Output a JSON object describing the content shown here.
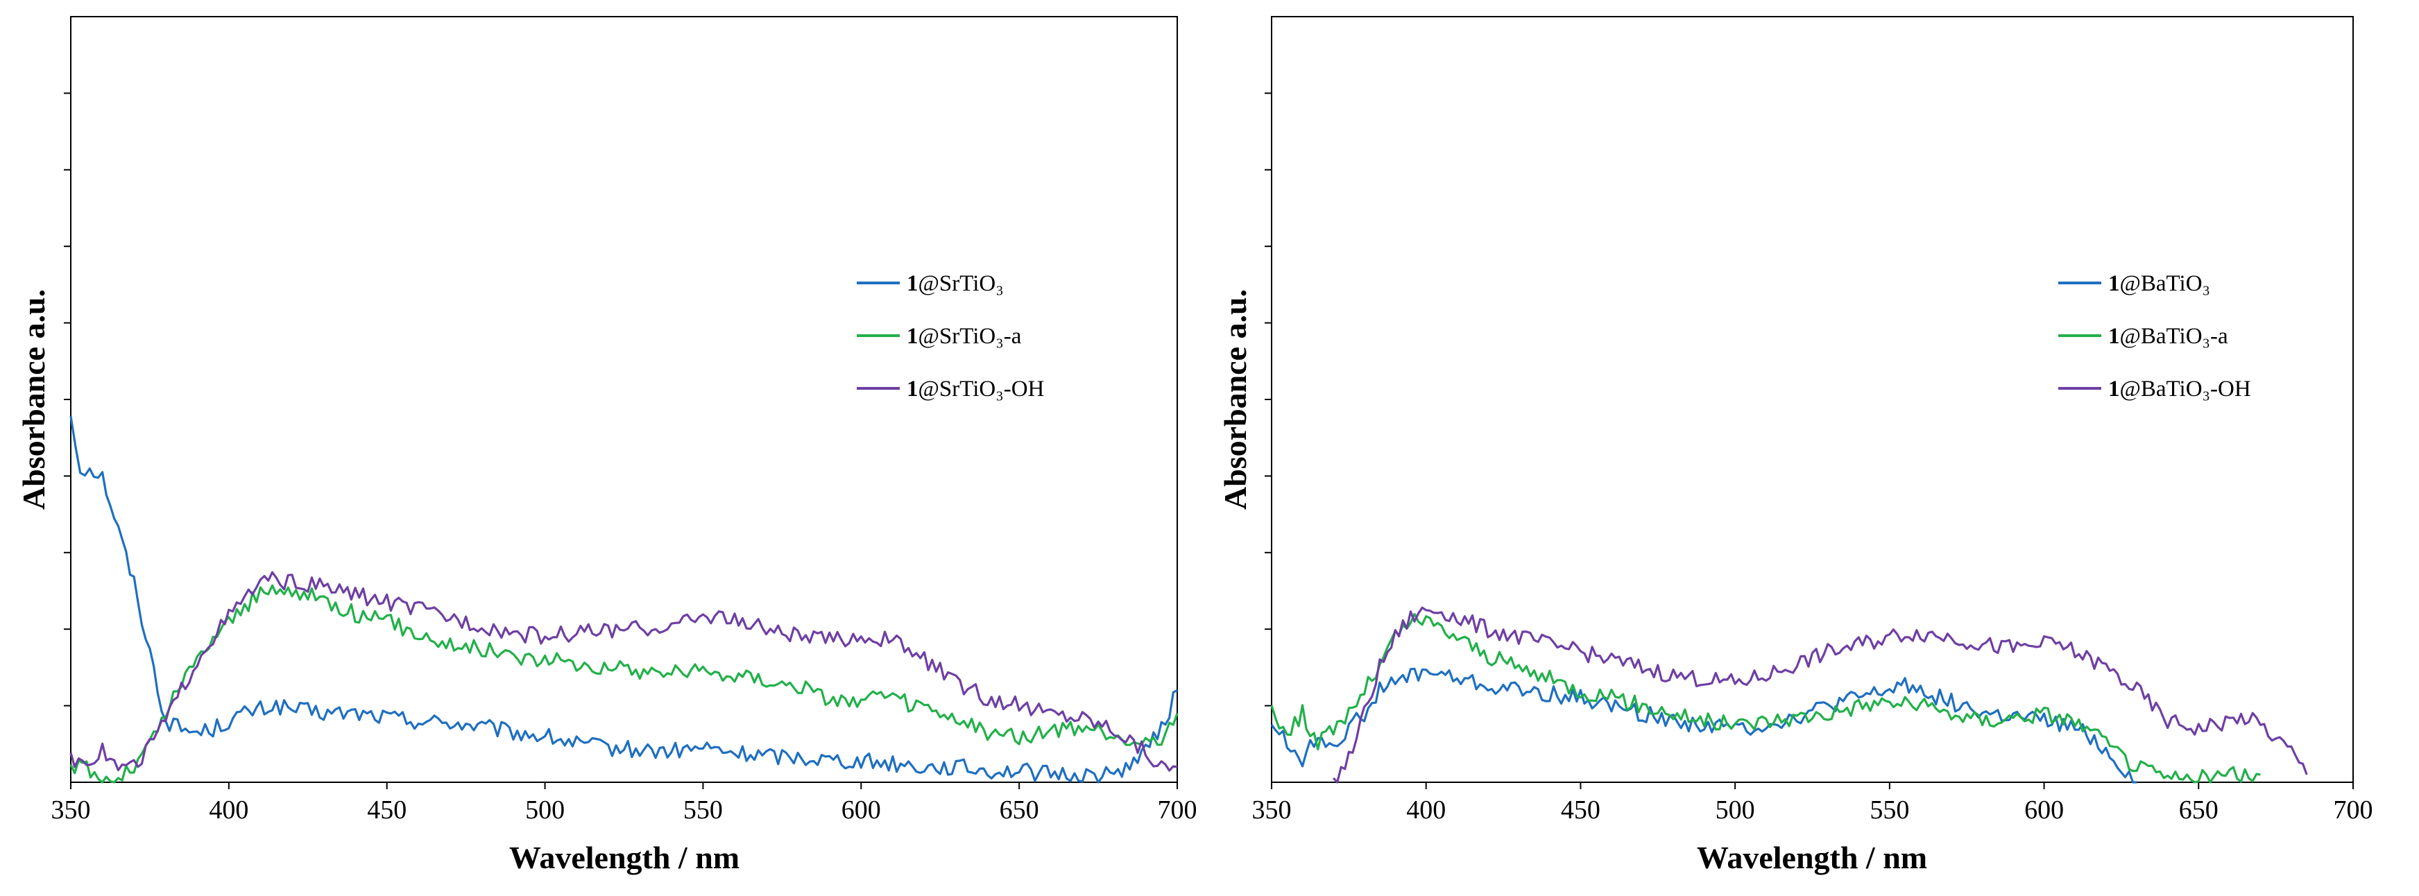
{
  "chart_data": [
    {
      "type": "line",
      "xlabel": "Wavelength / nm",
      "ylabel": "Absorbance a.u.",
      "xlim": [
        350,
        700
      ],
      "ylim": [
        0,
        1
      ],
      "xticks": [
        350,
        400,
        450,
        500,
        550,
        600,
        650,
        700
      ],
      "xtick_labels": [
        "350",
        "400",
        "450",
        "500",
        "550",
        "600",
        "650",
        "700"
      ],
      "ytick_count": 10,
      "legend_position": "right-center",
      "series": [
        {
          "name": "1@SrTiO3",
          "label_bold": "1",
          "label_rest": "@SrTiO₃",
          "color": "#1f6fc0",
          "x": [
            350,
            353,
            356,
            360,
            365,
            370,
            375,
            380,
            385,
            390,
            395,
            400,
            405,
            410,
            415,
            420,
            430,
            440,
            450,
            460,
            470,
            480,
            490,
            500,
            510,
            520,
            530,
            540,
            550,
            560,
            570,
            580,
            590,
            600,
            610,
            620,
            630,
            640,
            650,
            660,
            670,
            680,
            690,
            695,
            700
          ],
          "y": [
            0.48,
            0.41,
            0.41,
            0.4,
            0.33,
            0.26,
            0.17,
            0.08,
            0.07,
            0.065,
            0.07,
            0.08,
            0.09,
            0.095,
            0.1,
            0.095,
            0.09,
            0.09,
            0.085,
            0.08,
            0.078,
            0.072,
            0.065,
            0.06,
            0.05,
            0.045,
            0.042,
            0.04,
            0.045,
            0.038,
            0.035,
            0.033,
            0.03,
            0.028,
            0.025,
            0.02,
            0.02,
            0.015,
            0.015,
            0.01,
            0.01,
            0.01,
            0.04,
            0.07,
            0.12
          ]
        },
        {
          "name": "1@SrTiO3-a",
          "label_bold": "1",
          "label_rest": "@SrTiO₃-a",
          "color": "#22b04a",
          "x": [
            350,
            355,
            360,
            365,
            370,
            375,
            380,
            385,
            390,
            395,
            400,
            405,
            410,
            415,
            420,
            430,
            440,
            450,
            460,
            470,
            480,
            490,
            500,
            510,
            520,
            530,
            540,
            550,
            560,
            570,
            580,
            590,
            600,
            605,
            610,
            620,
            630,
            640,
            650,
            660,
            670,
            680,
            690,
            695,
            700
          ],
          "y": [
            0.02,
            0.02,
            0.0,
            0.005,
            0.02,
            0.05,
            0.09,
            0.13,
            0.16,
            0.19,
            0.21,
            0.23,
            0.245,
            0.25,
            0.25,
            0.24,
            0.22,
            0.21,
            0.195,
            0.18,
            0.175,
            0.165,
            0.16,
            0.155,
            0.15,
            0.145,
            0.145,
            0.145,
            0.14,
            0.135,
            0.125,
            0.11,
            0.105,
            0.11,
            0.11,
            0.095,
            0.08,
            0.065,
            0.06,
            0.065,
            0.07,
            0.06,
            0.05,
            0.06,
            0.09
          ]
        },
        {
          "name": "1@SrTiO3-OH",
          "label_bold": "1",
          "label_rest": "@SrTiO₃-OH",
          "color": "#6e3fa3",
          "x": [
            350,
            355,
            360,
            365,
            370,
            375,
            380,
            385,
            390,
            395,
            400,
            405,
            410,
            415,
            420,
            430,
            440,
            450,
            460,
            470,
            480,
            490,
            500,
            510,
            520,
            530,
            540,
            550,
            555,
            560,
            570,
            580,
            590,
            600,
            610,
            620,
            630,
            640,
            650,
            660,
            670,
            680,
            690,
            695,
            700
          ],
          "y": [
            0.03,
            0.03,
            0.04,
            0.02,
            0.02,
            0.05,
            0.08,
            0.12,
            0.16,
            0.19,
            0.215,
            0.24,
            0.26,
            0.265,
            0.26,
            0.255,
            0.245,
            0.235,
            0.225,
            0.215,
            0.205,
            0.195,
            0.19,
            0.195,
            0.2,
            0.2,
            0.205,
            0.215,
            0.22,
            0.21,
            0.2,
            0.19,
            0.185,
            0.19,
            0.185,
            0.16,
            0.13,
            0.11,
            0.1,
            0.09,
            0.085,
            0.07,
            0.04,
            0.02,
            0.02
          ]
        }
      ]
    },
    {
      "type": "line",
      "xlabel": "Wavelength / nm",
      "ylabel": "Absorbance a.u.",
      "xlim": [
        350,
        700
      ],
      "ylim": [
        0,
        1
      ],
      "xticks": [
        350,
        400,
        450,
        500,
        550,
        600,
        650,
        700
      ],
      "xtick_labels": [
        "350",
        "400",
        "450",
        "500",
        "550",
        "600",
        "650",
        "700"
      ],
      "ytick_count": 10,
      "legend_position": "right-center",
      "series": [
        {
          "name": "1@BaTiO3",
          "label_bold": "1",
          "label_rest": "@BaTiO₃",
          "color": "#1f6fc0",
          "x": [
            350,
            355,
            360,
            365,
            370,
            375,
            380,
            385,
            390,
            395,
            400,
            405,
            410,
            420,
            430,
            440,
            450,
            460,
            470,
            480,
            490,
            500,
            510,
            520,
            530,
            540,
            550,
            555,
            560,
            570,
            580,
            590,
            600,
            605,
            610,
            615,
            620,
            625,
            630
          ],
          "y": [
            0.08,
            0.05,
            0.03,
            0.06,
            0.05,
            0.07,
            0.09,
            0.12,
            0.13,
            0.14,
            0.145,
            0.14,
            0.135,
            0.125,
            0.12,
            0.115,
            0.11,
            0.1,
            0.09,
            0.08,
            0.075,
            0.07,
            0.075,
            0.085,
            0.1,
            0.11,
            0.12,
            0.13,
            0.12,
            0.105,
            0.09,
            0.085,
            0.08,
            0.075,
            0.07,
            0.06,
            0.04,
            0.02,
            0.0
          ]
        },
        {
          "name": "1@BaTiO3-a",
          "label_bold": "1",
          "label_rest": "@BaTiO₃-a",
          "color": "#22b04a",
          "x": [
            350,
            355,
            360,
            365,
            370,
            375,
            380,
            385,
            390,
            395,
            400,
            405,
            410,
            420,
            430,
            440,
            450,
            460,
            470,
            480,
            490,
            500,
            510,
            520,
            530,
            540,
            550,
            560,
            570,
            580,
            590,
            600,
            605,
            610,
            620,
            630,
            640,
            650,
            660,
            670
          ],
          "y": [
            0.1,
            0.06,
            0.09,
            0.05,
            0.07,
            0.09,
            0.12,
            0.15,
            0.19,
            0.21,
            0.21,
            0.2,
            0.19,
            0.165,
            0.15,
            0.135,
            0.12,
            0.11,
            0.1,
            0.09,
            0.08,
            0.075,
            0.08,
            0.085,
            0.09,
            0.1,
            0.105,
            0.1,
            0.09,
            0.08,
            0.085,
            0.09,
            0.085,
            0.08,
            0.05,
            0.02,
            0.005,
            0.005,
            0.01,
            0.01
          ]
        },
        {
          "name": "1@BaTiO3-OH",
          "label_bold": "1",
          "label_rest": "@BaTiO₃-OH",
          "color": "#6e3fa3",
          "x": [
            370,
            375,
            380,
            385,
            390,
            395,
            400,
            405,
            410,
            420,
            430,
            440,
            450,
            460,
            470,
            480,
            490,
            500,
            510,
            520,
            530,
            540,
            550,
            555,
            560,
            570,
            580,
            590,
            600,
            605,
            610,
            620,
            630,
            640,
            650,
            660,
            665,
            670,
            680,
            685
          ],
          "y": [
            0.0,
            0.03,
            0.09,
            0.15,
            0.19,
            0.215,
            0.225,
            0.225,
            0.215,
            0.2,
            0.19,
            0.18,
            0.17,
            0.16,
            0.15,
            0.14,
            0.135,
            0.13,
            0.14,
            0.155,
            0.17,
            0.18,
            0.19,
            0.195,
            0.195,
            0.19,
            0.18,
            0.175,
            0.18,
            0.18,
            0.17,
            0.15,
            0.12,
            0.08,
            0.07,
            0.08,
            0.085,
            0.075,
            0.04,
            0.01
          ]
        }
      ]
    }
  ]
}
